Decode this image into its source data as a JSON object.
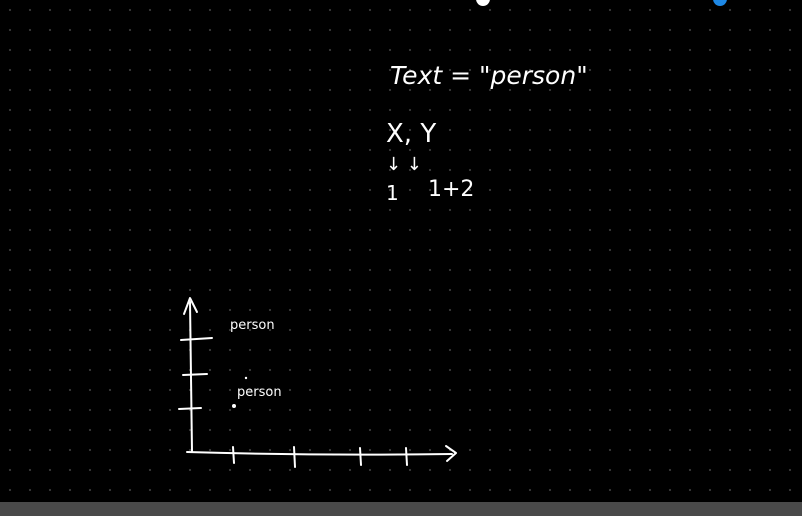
{
  "canvas": {
    "background": "#000000",
    "ink_color": "#ffffff",
    "grid_dot_color": "#3a3a3a"
  },
  "notes": {
    "line1": "Text = \"person\"",
    "line2": "X, Y",
    "arrows": "↓   ↓",
    "line3_x": "1",
    "line3_y": "1+2"
  },
  "plot": {
    "label_top": "person",
    "label_bottom": "person"
  },
  "top_markers": {
    "left_color": "#ffffff",
    "right_color": "#1e88e5"
  },
  "bottom_bar": {
    "color": "#4a4a4a"
  }
}
